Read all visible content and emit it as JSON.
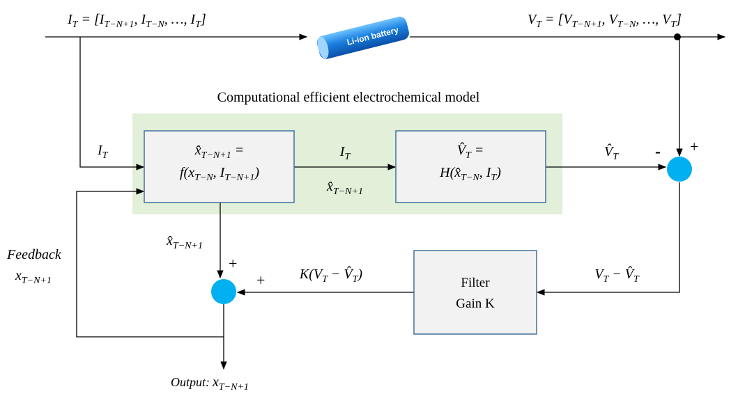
{
  "input_current": [
    [
      "I",
      "T"
    ],
    " = [",
    [
      "I",
      "T−N+1"
    ],
    ", ",
    [
      "I",
      "T−N"
    ],
    ", …, ",
    [
      "I",
      "T"
    ],
    "]"
  ],
  "battery_label": "Li-ion battery",
  "output_voltage": [
    [
      "V",
      "T"
    ],
    " = [",
    [
      "V",
      "T−N+1"
    ],
    ", ",
    [
      "V",
      "T−N"
    ],
    ", …, ",
    [
      "V",
      "T"
    ],
    "]"
  ],
  "model_title": "Computational efficient electrochemical model",
  "current_in_label": [
    [
      "I",
      "T"
    ]
  ],
  "state_box": {
    "lines": [
      [
        [
          "x̂",
          "T−N+1"
        ],
        " ="
      ],
      [
        "f(",
        [
          "x",
          "T−N"
        ],
        ", ",
        [
          "I",
          "T−N+1"
        ],
        ")"
      ]
    ]
  },
  "current_mid_label": [
    [
      "I",
      "T"
    ]
  ],
  "state_mid_label": [
    [
      "x̂",
      "T−N+1"
    ]
  ],
  "voltage_box": {
    "lines": [
      [
        [
          "V̂",
          "T"
        ],
        " ="
      ],
      [
        "H(",
        [
          "x̂",
          "T−N"
        ],
        ", ",
        [
          "I",
          "T"
        ],
        ")"
      ]
    ]
  },
  "voltage_est_label": [
    [
      "V̂",
      "T"
    ]
  ],
  "sum_right_signs": {
    "minus": "-",
    "plus": "+"
  },
  "state_down_label": [
    [
      "x̂",
      "T−N+1"
    ]
  ],
  "feedback_label": {
    "title": "Feedback",
    "state": [
      [
        "x",
        "T−N+1"
      ]
    ]
  },
  "sum_left_signs": {
    "top": "+",
    "left": "+"
  },
  "gain_label": [
    "K(",
    [
      "V",
      "T"
    ],
    " − ",
    [
      "V̂",
      "T"
    ],
    ")"
  ],
  "filter_box": {
    "lines": [
      "Filter",
      "Gain K"
    ]
  },
  "error_label": [
    [
      "V",
      "T"
    ],
    " − ",
    [
      "V̂",
      "T"
    ]
  ],
  "output_label": {
    "title": "Output:",
    "state": [
      [
        "x",
        "T−N+1"
      ]
    ]
  }
}
